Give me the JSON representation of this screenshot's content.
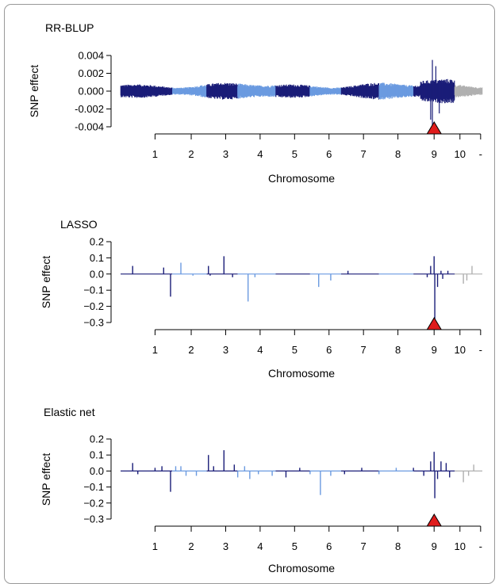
{
  "colors": {
    "dark": "#1a1d78",
    "light": "#6a9ae0",
    "extra": "#b0b0b0",
    "marker_fill": "#e01c1c",
    "marker_stroke": "#000000"
  },
  "marker": {
    "shape": "triangle",
    "chromosome": 9,
    "position": 0.17
  },
  "chart_data": [
    {
      "type": "line",
      "title": "RR-BLUP",
      "ylabel": "SNP effect",
      "xlabel": "Chromosome",
      "ylim": [
        -0.004,
        0.004
      ],
      "yticks": [
        -0.004,
        -0.002,
        0.0,
        0.002,
        0.004
      ],
      "ytick_labels": [
        "-0.004",
        "-0.002",
        "0.000",
        "0.002",
        "0.004"
      ],
      "xtick_labels": [
        "1",
        "2",
        "3",
        "4",
        "5",
        "6",
        "7",
        "8",
        "9",
        "10",
        "-"
      ],
      "chromosome_bounds": [
        0,
        1.5,
        2.5,
        3.4,
        4.5,
        5.5,
        6.4,
        7.5,
        8.5,
        9.7,
        10.5
      ],
      "noise_amplitude": 0.0007,
      "peaks": [
        {
          "x": 9.05,
          "y": 0.0035
        },
        {
          "x": 9.05,
          "y": -0.0042
        },
        {
          "x": 9.15,
          "y": 0.0028
        },
        {
          "x": 9.0,
          "y": -0.0032
        },
        {
          "x": 9.25,
          "y": -0.0025
        }
      ]
    },
    {
      "type": "line",
      "title": "LASSO",
      "ylabel": "SNP effect",
      "xlabel": "Chromosome",
      "ylim": [
        -0.3,
        0.2
      ],
      "yticks": [
        -0.3,
        -0.2,
        -0.1,
        0.0,
        0.1,
        0.2
      ],
      "ytick_labels": [
        "−0.3",
        "−0.2",
        "−0.1",
        "0.0",
        "0.1",
        "0.2"
      ],
      "xtick_labels": [
        "1",
        "2",
        "3",
        "4",
        "5",
        "6",
        "7",
        "8",
        "9",
        "10",
        "-"
      ],
      "chromosome_bounds": [
        0,
        1.5,
        2.5,
        3.4,
        4.5,
        5.5,
        6.4,
        7.5,
        8.5,
        9.7,
        10.5
      ],
      "effects": [
        {
          "x": 0.35,
          "y": 0.05
        },
        {
          "x": 1.25,
          "y": 0.04
        },
        {
          "x": 1.45,
          "y": -0.14
        },
        {
          "x": 1.75,
          "y": 0.07
        },
        {
          "x": 2.1,
          "y": -0.01
        },
        {
          "x": 2.55,
          "y": 0.05
        },
        {
          "x": 2.6,
          "y": -0.01
        },
        {
          "x": 3.0,
          "y": 0.11
        },
        {
          "x": 3.25,
          "y": -0.02
        },
        {
          "x": 3.7,
          "y": -0.17
        },
        {
          "x": 3.9,
          "y": -0.02
        },
        {
          "x": 5.75,
          "y": -0.08
        },
        {
          "x": 6.1,
          "y": -0.04
        },
        {
          "x": 6.6,
          "y": 0.02
        },
        {
          "x": 8.9,
          "y": -0.02
        },
        {
          "x": 9.0,
          "y": 0.05
        },
        {
          "x": 9.1,
          "y": 0.11
        },
        {
          "x": 9.12,
          "y": -0.31
        },
        {
          "x": 9.2,
          "y": -0.08
        },
        {
          "x": 9.3,
          "y": 0.02
        },
        {
          "x": 9.35,
          "y": -0.03
        },
        {
          "x": 9.5,
          "y": 0.02
        },
        {
          "x": 9.95,
          "y": -0.06
        },
        {
          "x": 10.05,
          "y": -0.04
        },
        {
          "x": 10.2,
          "y": 0.05
        }
      ]
    },
    {
      "type": "line",
      "title": "Elastic net",
      "ylabel": "SNP effect",
      "xlabel": "Chromosome",
      "ylim": [
        -0.3,
        0.2
      ],
      "yticks": [
        -0.3,
        -0.2,
        -0.1,
        0.0,
        0.1,
        0.2
      ],
      "ytick_labels": [
        "−0.3",
        "−0.2",
        "−0.1",
        "0.0",
        "0.1",
        "0.2"
      ],
      "xtick_labels": [
        "1",
        "2",
        "3",
        "4",
        "5",
        "6",
        "7",
        "8",
        "9",
        "10",
        "-"
      ],
      "chromosome_bounds": [
        0,
        1.5,
        2.5,
        3.4,
        4.5,
        5.5,
        6.4,
        7.5,
        8.5,
        9.7,
        10.5
      ],
      "effects": [
        {
          "x": 0.35,
          "y": 0.05
        },
        {
          "x": 0.5,
          "y": -0.02
        },
        {
          "x": 1.0,
          "y": 0.02
        },
        {
          "x": 1.2,
          "y": 0.03
        },
        {
          "x": 1.45,
          "y": -0.13
        },
        {
          "x": 1.6,
          "y": 0.03
        },
        {
          "x": 1.75,
          "y": 0.03
        },
        {
          "x": 1.9,
          "y": -0.03
        },
        {
          "x": 2.2,
          "y": -0.03
        },
        {
          "x": 2.55,
          "y": 0.1
        },
        {
          "x": 2.7,
          "y": 0.03
        },
        {
          "x": 3.0,
          "y": 0.13
        },
        {
          "x": 3.3,
          "y": 0.04
        },
        {
          "x": 3.4,
          "y": -0.04
        },
        {
          "x": 3.6,
          "y": 0.03
        },
        {
          "x": 3.75,
          "y": -0.05
        },
        {
          "x": 4.0,
          "y": -0.02
        },
        {
          "x": 4.4,
          "y": -0.03
        },
        {
          "x": 4.8,
          "y": -0.04
        },
        {
          "x": 5.2,
          "y": 0.02
        },
        {
          "x": 5.5,
          "y": -0.02
        },
        {
          "x": 5.8,
          "y": -0.15
        },
        {
          "x": 6.1,
          "y": -0.03
        },
        {
          "x": 6.5,
          "y": -0.02
        },
        {
          "x": 7.0,
          "y": 0.02
        },
        {
          "x": 7.5,
          "y": -0.02
        },
        {
          "x": 8.0,
          "y": 0.02
        },
        {
          "x": 8.5,
          "y": 0.02
        },
        {
          "x": 8.8,
          "y": -0.03
        },
        {
          "x": 9.0,
          "y": 0.06
        },
        {
          "x": 9.1,
          "y": 0.12
        },
        {
          "x": 9.12,
          "y": -0.17
        },
        {
          "x": 9.2,
          "y": -0.05
        },
        {
          "x": 9.3,
          "y": 0.06
        },
        {
          "x": 9.45,
          "y": 0.05
        },
        {
          "x": 9.55,
          "y": -0.04
        },
        {
          "x": 9.95,
          "y": -0.07
        },
        {
          "x": 10.1,
          "y": -0.03
        },
        {
          "x": 10.25,
          "y": 0.04
        }
      ]
    }
  ]
}
